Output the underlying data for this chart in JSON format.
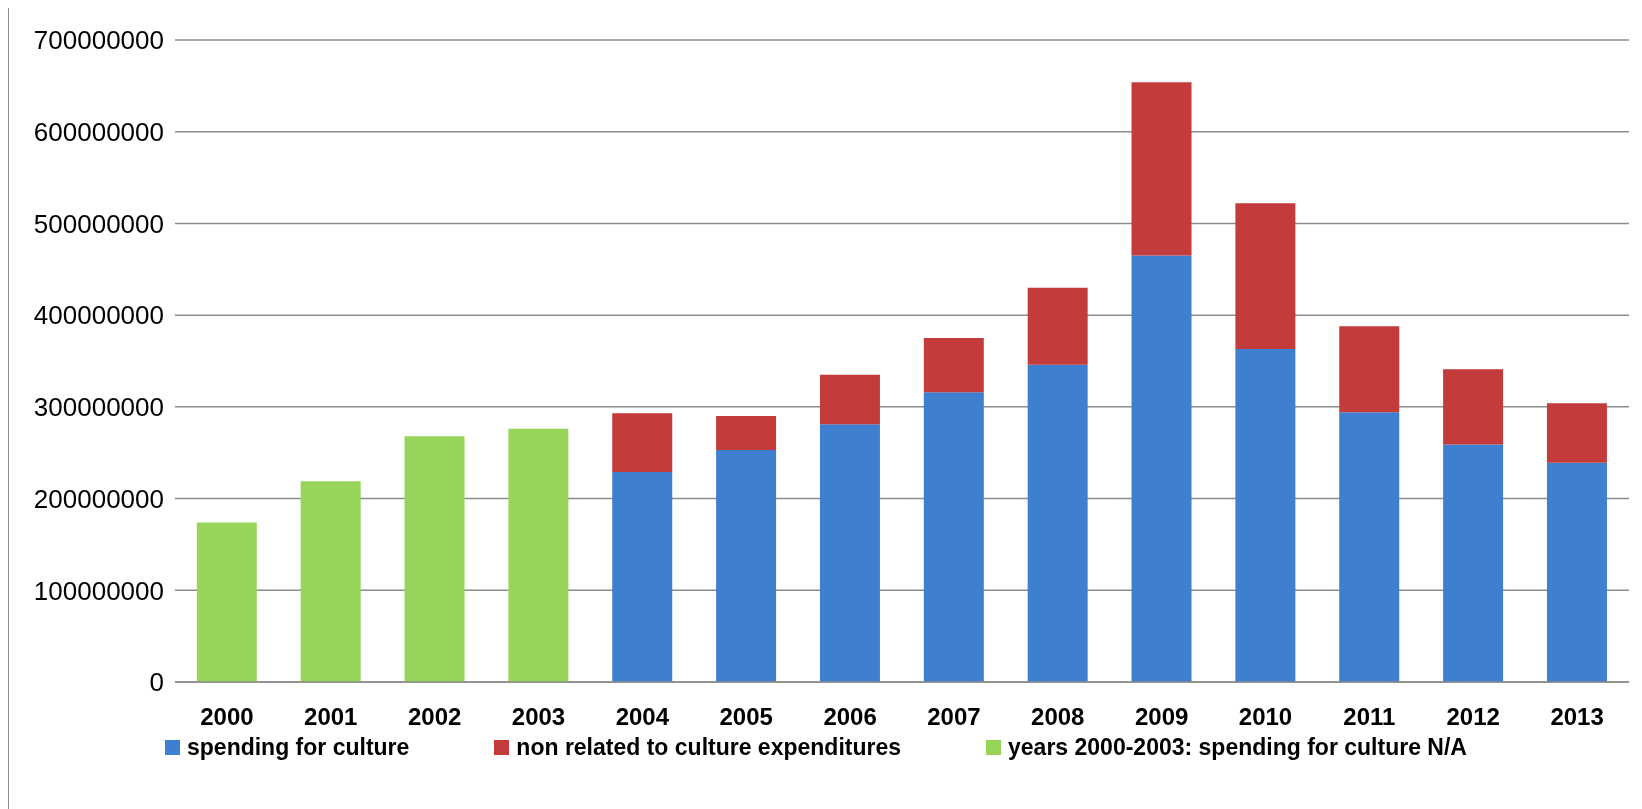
{
  "chart_data": {
    "type": "bar",
    "stacked": true,
    "categories": [
      "2000",
      "2001",
      "2002",
      "2003",
      "2004",
      "2005",
      "2006",
      "2007",
      "2008",
      "2009",
      "2010",
      "2011",
      "2012",
      "2013"
    ],
    "series": [
      {
        "name": "spending for culture",
        "color": "#3f7fcf",
        "values": [
          null,
          null,
          null,
          null,
          229000000,
          253000000,
          281000000,
          316000000,
          346000000,
          465000000,
          363000000,
          294000000,
          259000000,
          239000000
        ]
      },
      {
        "name": "non related to culture expenditures",
        "color": "#c33b3b",
        "values": [
          null,
          null,
          null,
          null,
          64000000,
          37000000,
          54000000,
          59000000,
          84000000,
          189000000,
          159000000,
          94000000,
          82000000,
          65000000
        ]
      },
      {
        "name": "years 2000-2003: spending for culture N/A",
        "color": "#96d55a",
        "values": [
          174000000,
          219000000,
          268000000,
          276000000,
          null,
          null,
          null,
          null,
          null,
          null,
          null,
          null,
          null,
          null
        ]
      }
    ],
    "ylim": [
      0,
      700000000
    ],
    "yticks": [
      0,
      100000000,
      200000000,
      300000000,
      400000000,
      500000000,
      600000000,
      700000000
    ],
    "grid": "y",
    "legend": "bottom"
  }
}
